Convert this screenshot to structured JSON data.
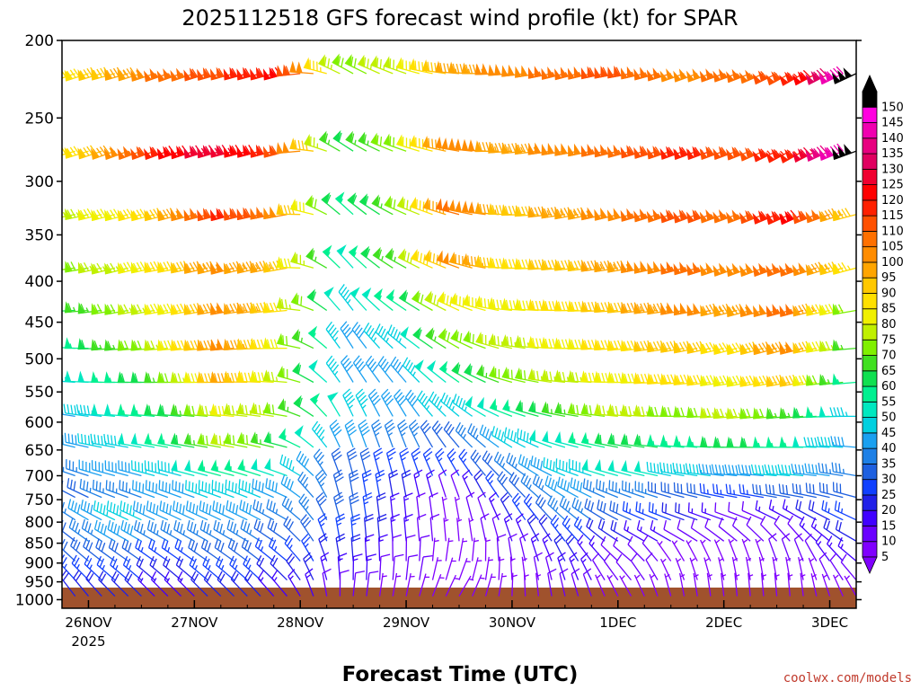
{
  "chart_data": {
    "type": "wind_barb_profile",
    "title": "2025112518 GFS forecast wind profile (kt) for SPAR",
    "xlabel": "Forecast Time (UTC)",
    "credit": "coolwx.com/models",
    "x_ticks": [
      {
        "label": "26NOV",
        "sub": "2025",
        "hour": 6
      },
      {
        "label": "27NOV",
        "sub": "",
        "hour": 30
      },
      {
        "label": "28NOV",
        "sub": "",
        "hour": 54
      },
      {
        "label": "29NOV",
        "sub": "",
        "hour": 78
      },
      {
        "label": "30NOV",
        "sub": "",
        "hour": 102
      },
      {
        "label": "1DEC",
        "sub": "",
        "hour": 126
      },
      {
        "label": "2DEC",
        "sub": "",
        "hour": 150
      },
      {
        "label": "3DEC",
        "sub": "",
        "hour": 174
      }
    ],
    "xlim_hours": [
      0,
      180
    ],
    "y_ticks": [
      "200",
      "250",
      "300",
      "350",
      "400",
      "450",
      "500",
      "550",
      "600",
      "650",
      "700",
      "750",
      "800",
      "850",
      "900",
      "950",
      "1000"
    ],
    "ylim_hpa": [
      200,
      1025
    ],
    "barb_levels_hpa": [
      220,
      275,
      330,
      385,
      435,
      485,
      535,
      590,
      645,
      700,
      745,
      795,
      845,
      895,
      945,
      990
    ],
    "timestep_hours": 3,
    "colorbar": {
      "labels": [
        "5",
        "10",
        "15",
        "20",
        "25",
        "30",
        "35",
        "40",
        "45",
        "50",
        "55",
        "60",
        "65",
        "70",
        "75",
        "80",
        "85",
        "90",
        "95",
        "100",
        "105",
        "110",
        "115",
        "120",
        "125",
        "130",
        "135",
        "140",
        "145",
        "150"
      ],
      "colors": [
        "#8000ff",
        "#6a00ff",
        "#4000ff",
        "#2020e8",
        "#1040ff",
        "#1e60e0",
        "#1e80e6",
        "#1aa0f0",
        "#00d0e0",
        "#00e8c0",
        "#00f090",
        "#10e050",
        "#40e020",
        "#80f000",
        "#c0f000",
        "#f0f000",
        "#ffe000",
        "#ffc800",
        "#ffa500",
        "#ff8c00",
        "#ff7000",
        "#ff5000",
        "#ff2000",
        "#ff0000",
        "#f00030",
        "#e00060",
        "#e80080",
        "#f000b0",
        "#ff00e0",
        "#000000"
      ]
    },
    "wind_speed_kt": [
      [
        85,
        90,
        105,
        110,
        120,
        70,
        75,
        95,
        100,
        105,
        110,
        100,
        105,
        110,
        150
      ],
      [
        80,
        95,
        120,
        125,
        110,
        60,
        70,
        100,
        95,
        100,
        105,
        115,
        110,
        115,
        150
      ],
      [
        75,
        80,
        90,
        115,
        100,
        55,
        65,
        105,
        90,
        95,
        100,
        110,
        105,
        120,
        90
      ],
      [
        70,
        75,
        85,
        100,
        90,
        50,
        65,
        100,
        85,
        90,
        95,
        105,
        100,
        105,
        85
      ],
      [
        60,
        70,
        80,
        100,
        85,
        45,
        55,
        80,
        80,
        85,
        90,
        100,
        95,
        105,
        70
      ],
      [
        50,
        65,
        75,
        100,
        80,
        40,
        45,
        70,
        75,
        80,
        85,
        90,
        85,
        100,
        65
      ],
      [
        45,
        55,
        65,
        95,
        75,
        40,
        40,
        55,
        70,
        75,
        80,
        85,
        80,
        90,
        55
      ],
      [
        40,
        50,
        60,
        80,
        70,
        45,
        40,
        45,
        55,
        65,
        75,
        70,
        75,
        65,
        45
      ],
      [
        40,
        45,
        55,
        75,
        60,
        40,
        35,
        30,
        45,
        50,
        60,
        55,
        60,
        55,
        40
      ],
      [
        35,
        40,
        45,
        55,
        50,
        30,
        25,
        25,
        35,
        45,
        50,
        45,
        40,
        45,
        35
      ],
      [
        30,
        35,
        40,
        45,
        40,
        30,
        20,
        10,
        30,
        40,
        35,
        30,
        25,
        30,
        30
      ],
      [
        35,
        45,
        40,
        40,
        35,
        30,
        15,
        5,
        20,
        35,
        30,
        20,
        10,
        15,
        25
      ],
      [
        30,
        40,
        35,
        35,
        30,
        25,
        15,
        5,
        15,
        25,
        20,
        10,
        10,
        10,
        20
      ],
      [
        30,
        30,
        25,
        30,
        25,
        20,
        10,
        5,
        10,
        20,
        10,
        5,
        5,
        10,
        15
      ],
      [
        25,
        25,
        20,
        25,
        20,
        15,
        10,
        5,
        5,
        15,
        10,
        5,
        5,
        5,
        10
      ],
      [
        20,
        20,
        15,
        20,
        15,
        10,
        5,
        5,
        5,
        10,
        5,
        5,
        5,
        5,
        5
      ]
    ],
    "wind_dir_deg": [
      [
        250,
        255,
        250,
        255,
        255,
        300,
        290,
        275,
        265,
        255,
        260,
        250,
        250,
        240,
        245
      ],
      [
        255,
        250,
        250,
        255,
        255,
        305,
        290,
        280,
        265,
        260,
        255,
        250,
        250,
        240,
        250
      ],
      [
        260,
        255,
        255,
        255,
        260,
        315,
        295,
        285,
        270,
        260,
        255,
        250,
        250,
        245,
        255
      ],
      [
        265,
        255,
        260,
        255,
        260,
        320,
        300,
        290,
        270,
        265,
        260,
        255,
        250,
        250,
        255
      ],
      [
        270,
        260,
        260,
        260,
        265,
        325,
        305,
        295,
        275,
        270,
        265,
        260,
        255,
        255,
        260
      ],
      [
        275,
        265,
        265,
        265,
        270,
        330,
        310,
        300,
        280,
        270,
        265,
        260,
        255,
        255,
        265
      ],
      [
        275,
        270,
        270,
        270,
        275,
        330,
        320,
        305,
        285,
        275,
        270,
        265,
        260,
        260,
        265
      ],
      [
        280,
        275,
        275,
        275,
        280,
        335,
        330,
        310,
        290,
        280,
        275,
        270,
        265,
        265,
        270
      ],
      [
        285,
        280,
        280,
        280,
        285,
        340,
        340,
        320,
        300,
        285,
        280,
        275,
        270,
        270,
        275
      ],
      [
        290,
        285,
        285,
        285,
        290,
        345,
        345,
        330,
        310,
        290,
        285,
        280,
        275,
        275,
        280
      ],
      [
        300,
        290,
        290,
        290,
        295,
        350,
        350,
        340,
        320,
        300,
        290,
        285,
        280,
        280,
        285
      ],
      [
        305,
        295,
        295,
        295,
        300,
        350,
        355,
        350,
        330,
        310,
        295,
        290,
        290,
        300,
        295
      ],
      [
        310,
        300,
        300,
        300,
        305,
        355,
        355,
        355,
        340,
        320,
        300,
        300,
        310,
        320,
        300
      ],
      [
        315,
        305,
        305,
        305,
        310,
        355,
        0,
        10,
        350,
        330,
        310,
        330,
        340,
        340,
        310
      ],
      [
        320,
        310,
        310,
        310,
        315,
        0,
        5,
        20,
        355,
        340,
        320,
        340,
        350,
        350,
        320
      ],
      [
        325,
        315,
        315,
        315,
        320,
        5,
        10,
        30,
        0,
        345,
        330,
        350,
        355,
        355,
        330
      ]
    ],
    "terrain_hpa": 985,
    "terrain_color": "#a0522d"
  }
}
